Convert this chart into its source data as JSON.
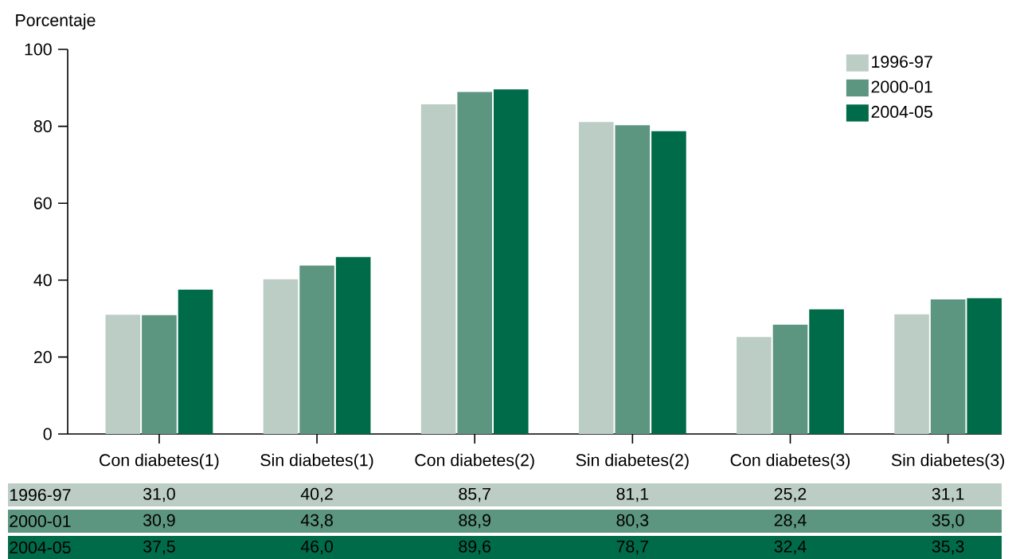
{
  "chart_data": {
    "type": "bar",
    "ylabel": "Porcentaje",
    "categories": [
      "Con diabetes(1)",
      "Sin diabetes(1)",
      "Con diabetes(2)",
      "Sin diabetes(2)",
      "Con diabetes(3)",
      "Sin diabetes(3)"
    ],
    "series": [
      {
        "name": "1996-97",
        "color": "#bccdc6",
        "values": [
          31.0,
          40.2,
          85.7,
          81.1,
          25.2,
          31.1
        ],
        "value_labels": [
          "31,0",
          "40,2",
          "85,7",
          "81,1",
          "25,2",
          "31,1"
        ]
      },
      {
        "name": "2000-01",
        "color": "#5c9580",
        "values": [
          30.9,
          43.8,
          88.9,
          80.3,
          28.4,
          35.0
        ],
        "value_labels": [
          "30,9",
          "43,8",
          "88,9",
          "80,3",
          "28,4",
          "35,0"
        ]
      },
      {
        "name": "2004-05",
        "color": "#006b48",
        "values": [
          37.5,
          46.0,
          89.6,
          78.7,
          32.4,
          35.3
        ],
        "value_labels": [
          "37,5",
          "46,0",
          "89,6",
          "78,7",
          "32,4",
          "35,3"
        ]
      }
    ],
    "ylim": [
      0,
      100
    ],
    "yticks": [
      0,
      20,
      40,
      60,
      80,
      100
    ],
    "legend": "top right"
  }
}
